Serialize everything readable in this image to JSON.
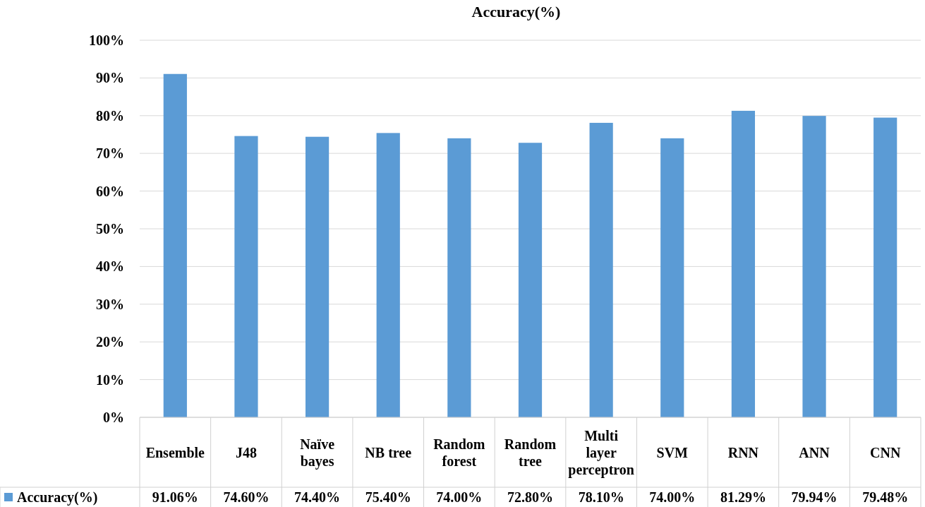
{
  "chart_data": {
    "type": "bar",
    "title": "Accuracy(%)",
    "categories": [
      "Ensemble",
      "J48",
      "Naïve bayes",
      "NB tree",
      "Random forest",
      "Random tree",
      "Multi layer perceptron",
      "SVM",
      "RNN",
      "ANN",
      "CNN"
    ],
    "series": [
      {
        "name": "Accuracy(%)",
        "color": "#5b9bd5",
        "values": [
          91.06,
          74.6,
          74.4,
          75.4,
          74.0,
          72.8,
          78.1,
          74.0,
          81.29,
          79.94,
          79.48
        ],
        "value_labels": [
          "91.06%",
          "74.60%",
          "74.40%",
          "75.40%",
          "74.00%",
          "72.80%",
          "78.10%",
          "74.00%",
          "81.29%",
          "79.94%",
          "79.48%"
        ]
      }
    ],
    "ylim": [
      0,
      100
    ],
    "yticks": [
      {
        "value": 0,
        "label": "0%"
      },
      {
        "value": 10,
        "label": "10%"
      },
      {
        "value": 20,
        "label": "20%"
      },
      {
        "value": 30,
        "label": "30%"
      },
      {
        "value": 40,
        "label": "40%"
      },
      {
        "value": 50,
        "label": "50%"
      },
      {
        "value": 60,
        "label": "60%"
      },
      {
        "value": 70,
        "label": "70%"
      },
      {
        "value": 80,
        "label": "80%"
      },
      {
        "value": 90,
        "label": "90%"
      },
      {
        "value": 100,
        "label": "100%"
      }
    ],
    "grid": "y",
    "legend": "bottom"
  }
}
